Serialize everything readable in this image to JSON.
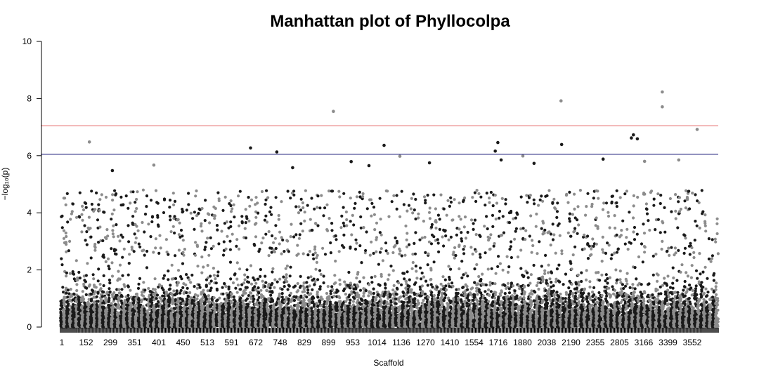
{
  "chart_data": {
    "type": "scatter",
    "title": "Manhattan plot of Phyllocolpa",
    "xlabel": "Scaffold",
    "ylabel": "−log₁₀(p)",
    "ylim": [
      0,
      10
    ],
    "y_ticks": [
      "0",
      "2",
      "4",
      "6",
      "8",
      "10"
    ],
    "x_tick_labels": [
      "1",
      "152",
      "299",
      "351",
      "401",
      "450",
      "513",
      "591",
      "672",
      "748",
      "829",
      "899",
      "953",
      "1014",
      "1136",
      "1270",
      "1410",
      "1554",
      "1716",
      "1880",
      "2038",
      "2190",
      "2355",
      "2805",
      "3166",
      "3399",
      "3552"
    ],
    "colors": {
      "dark": "#1a1a1a",
      "light": "#8c8c8c",
      "suggestive_line": "#e88080",
      "significance_line": "#3c3c8c"
    },
    "thresholds": {
      "upper": 7.05,
      "lower": 6.05
    },
    "highlighted_points": [
      {
        "x": 0.044,
        "y": 6.48,
        "c": "light"
      },
      {
        "x": 0.289,
        "y": 6.27,
        "c": "dark"
      },
      {
        "x": 0.329,
        "y": 6.13,
        "c": "dark"
      },
      {
        "x": 0.415,
        "y": 7.55,
        "c": "light"
      },
      {
        "x": 0.492,
        "y": 6.36,
        "c": "dark"
      },
      {
        "x": 0.665,
        "y": 6.46,
        "c": "dark"
      },
      {
        "x": 0.661,
        "y": 6.16,
        "c": "dark"
      },
      {
        "x": 0.761,
        "y": 7.92,
        "c": "light"
      },
      {
        "x": 0.762,
        "y": 6.39,
        "c": "dark"
      },
      {
        "x": 0.871,
        "y": 6.73,
        "c": "dark"
      },
      {
        "x": 0.868,
        "y": 6.62,
        "c": "dark"
      },
      {
        "x": 0.877,
        "y": 6.59,
        "c": "dark"
      },
      {
        "x": 0.915,
        "y": 8.23,
        "c": "light"
      },
      {
        "x": 0.915,
        "y": 7.71,
        "c": "light"
      },
      {
        "x": 0.968,
        "y": 6.92,
        "c": "light"
      },
      {
        "x": 0.079,
        "y": 5.48,
        "c": "dark"
      },
      {
        "x": 0.142,
        "y": 5.67,
        "c": "light"
      },
      {
        "x": 0.353,
        "y": 5.58,
        "c": "dark"
      },
      {
        "x": 0.442,
        "y": 5.79,
        "c": "dark"
      },
      {
        "x": 0.469,
        "y": 5.65,
        "c": "dark"
      },
      {
        "x": 0.516,
        "y": 5.98,
        "c": "light"
      },
      {
        "x": 0.561,
        "y": 5.75,
        "c": "dark"
      },
      {
        "x": 0.67,
        "y": 5.85,
        "c": "dark"
      },
      {
        "x": 0.703,
        "y": 5.99,
        "c": "light"
      },
      {
        "x": 0.72,
        "y": 5.73,
        "c": "dark"
      },
      {
        "x": 0.825,
        "y": 5.88,
        "c": "dark"
      },
      {
        "x": 0.888,
        "y": 5.8,
        "c": "light"
      },
      {
        "x": 0.94,
        "y": 5.85,
        "c": "light"
      }
    ]
  }
}
